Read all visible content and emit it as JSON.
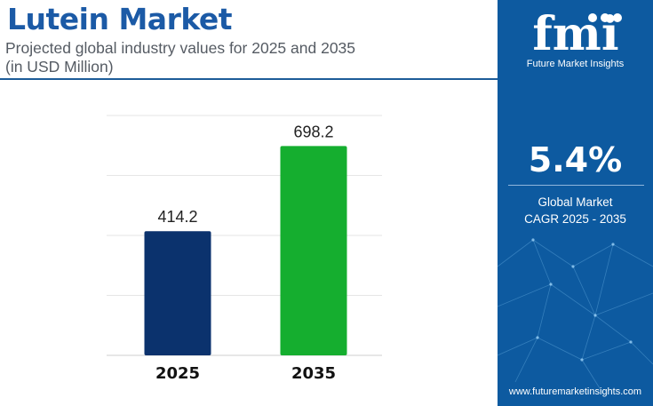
{
  "header": {
    "title": "Lutein Market",
    "subtitle_line1": "Projected global industry values for 2025 and 2035",
    "subtitle_line2": "(in USD Million)"
  },
  "sidebar": {
    "logo_text": "fmi",
    "brand": "Future Market Insights",
    "cagr_value": "5.4%",
    "cagr_label_line1": "Global Market",
    "cagr_label_line2": "CAGR 2025 - 2035",
    "url": "www.futuremarketinsights.com"
  },
  "colors": {
    "title": "#1b5aa6",
    "sidebar": "#0d5aa0",
    "bar_2025": "#0b326d",
    "bar_2035": "#15ae2f"
  },
  "chart_data": {
    "type": "bar",
    "categories": [
      "2025",
      "2035"
    ],
    "values": [
      414.2,
      698.2
    ],
    "data_labels": [
      "414.2",
      "698.2"
    ],
    "bar_colors": [
      "#0b326d",
      "#15ae2f"
    ],
    "ylim": [
      0,
      800
    ],
    "grid": true,
    "title": "",
    "xlabel": "",
    "ylabel": ""
  }
}
